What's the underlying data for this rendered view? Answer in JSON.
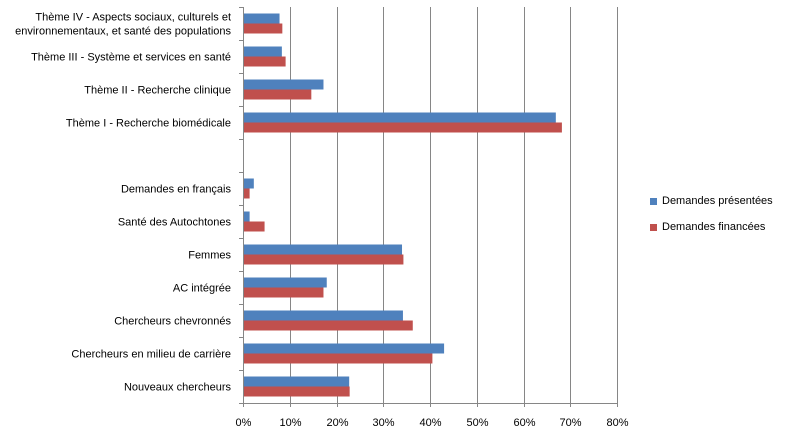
{
  "chart_data": {
    "type": "bar",
    "orientation": "horizontal",
    "categories": [
      "Nouveaux chercheurs",
      "Chercheurs en milieu de carrière",
      "Chercheurs chevronnés",
      "AC intégrée",
      "Femmes",
      "Santé des Autochtones",
      "Demandes en français",
      "",
      "Thème I - Recherche biomédicale",
      "Thème II - Recherche clinique",
      "Thème III - Système et services en santé",
      "Thème IV - Aspects sociaux, culturels et environnementaux, et santé des populations"
    ],
    "series": [
      {
        "name": "Demandes présentées",
        "color": "#4F81BD",
        "values": [
          22.5,
          42.8,
          34.0,
          17.7,
          33.8,
          1.2,
          2.1,
          null,
          66.7,
          17.0,
          8.1,
          7.6
        ]
      },
      {
        "name": "Demandes financées",
        "color": "#C0504D",
        "values": [
          22.6,
          40.3,
          36.1,
          17.0,
          34.1,
          4.4,
          1.2,
          null,
          68.0,
          14.4,
          8.9,
          8.2
        ]
      }
    ],
    "xlim": [
      0,
      80
    ],
    "xticks": [
      "0%",
      "10%",
      "20%",
      "30%",
      "40%",
      "50%",
      "60%",
      "70%",
      "80%"
    ],
    "grid": true,
    "legend_position": "right"
  }
}
